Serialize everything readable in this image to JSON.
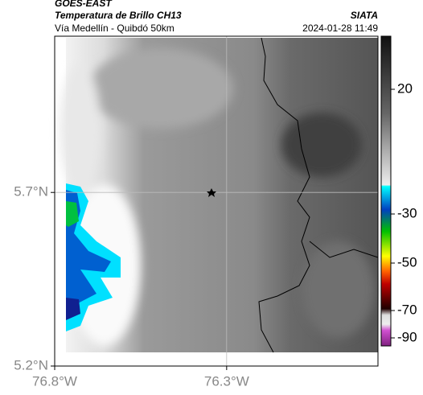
{
  "header": {
    "title": "GOES-EAST",
    "subtitle": "Temperatura de Brillo CH13",
    "source": "SIATA",
    "route": "Vía Medellín - Quibdó 50km",
    "datetime": "2024-01-28 11:49"
  },
  "map": {
    "xlim": [
      -76.8,
      -75.86
    ],
    "ylim": [
      5.2,
      6.15
    ],
    "xticks": [
      {
        "value": -76.8,
        "label": "76.8°W"
      },
      {
        "value": -76.3,
        "label": "76.3°W"
      }
    ],
    "yticks": [
      {
        "value": 5.7,
        "label": "5.7°N"
      },
      {
        "value": 5.2,
        "label": "5.2°N"
      }
    ],
    "grid": true
  },
  "colorbar": {
    "ticks": [
      20,
      -30,
      -50,
      -70,
      -90
    ]
  }
}
